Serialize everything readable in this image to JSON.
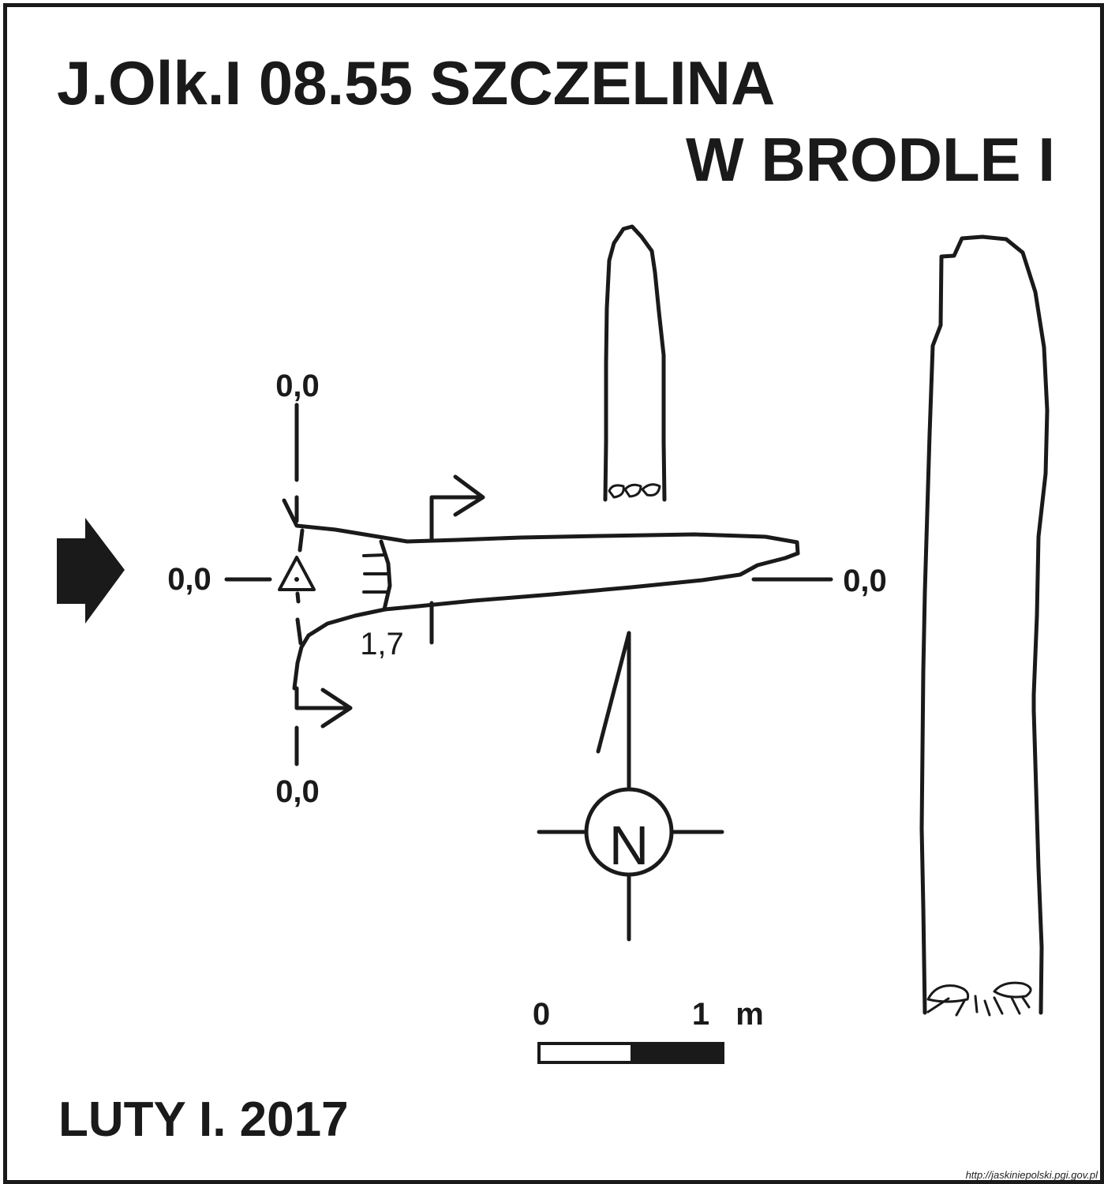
{
  "title": {
    "line1": "J.Olk.I 08.55  SZCZELINA",
    "line2": "W BRODLE I"
  },
  "date": "LUTY I. 2017",
  "plan": {
    "level_top": "0,0",
    "level_bottom": "0,0",
    "level_left": "0,0",
    "level_right": "0,0",
    "depth": "1,7"
  },
  "north": {
    "letter": "N"
  },
  "scale": {
    "zero": "0",
    "one": "1",
    "unit": "m"
  },
  "source": "http://jaskiniepolski.pgi.gov.pl",
  "colors": {
    "ink": "#1a1a1a",
    "paper": "#ffffff"
  }
}
